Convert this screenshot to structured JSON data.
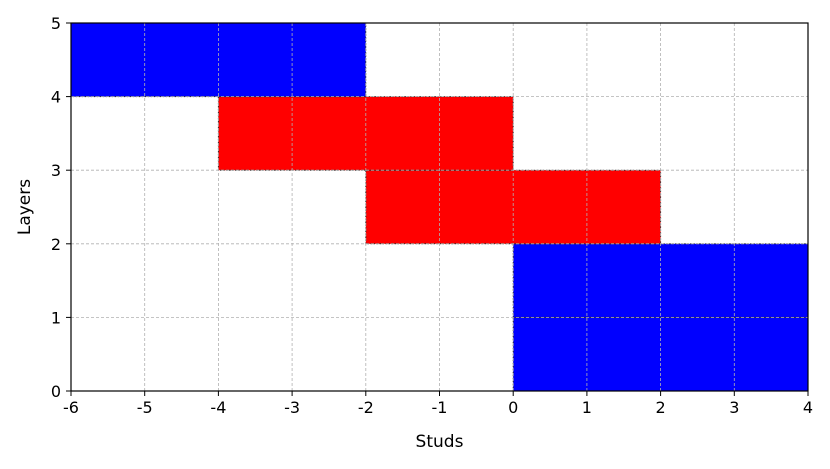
{
  "chart_data": {
    "type": "bar",
    "title": "",
    "xlabel": "Studs",
    "ylabel": "Layers",
    "xlim": [
      -6,
      4
    ],
    "ylim": [
      0,
      5
    ],
    "x_ticks": [
      "-6",
      "-5",
      "-4",
      "-3",
      "-2",
      "-1",
      "0",
      "1",
      "2",
      "3",
      "4"
    ],
    "y_ticks": [
      "0",
      "1",
      "2",
      "3",
      "4",
      "5"
    ],
    "grid": true,
    "bricks": [
      {
        "x_start": 0,
        "x_end": 4,
        "layer_bottom": 0,
        "layer_top": 1,
        "color": "#0000ff"
      },
      {
        "x_start": 0,
        "x_end": 4,
        "layer_bottom": 1,
        "layer_top": 2,
        "color": "#0000ff"
      },
      {
        "x_start": -2,
        "x_end": 2,
        "layer_bottom": 2,
        "layer_top": 3,
        "color": "#ff0000"
      },
      {
        "x_start": -4,
        "x_end": 0,
        "layer_bottom": 3,
        "layer_top": 4,
        "color": "#ff0000"
      },
      {
        "x_start": -6,
        "x_end": -2,
        "layer_bottom": 4,
        "layer_top": 5,
        "color": "#0000ff"
      }
    ]
  }
}
